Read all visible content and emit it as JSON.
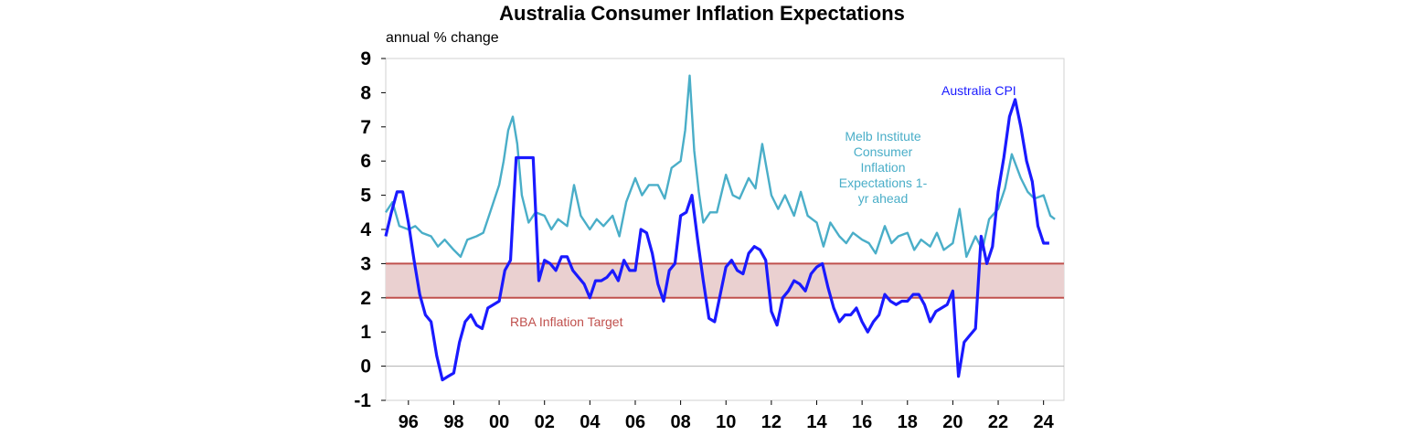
{
  "chart_data": {
    "type": "line",
    "title": "Australia Consumer Inflation Expectations",
    "ylabel": "annual % change",
    "xlabel": "",
    "ylim": [
      -1,
      9
    ],
    "yticks": [
      "-1",
      "0",
      "1",
      "2",
      "3",
      "4",
      "5",
      "6",
      "7",
      "8",
      "9"
    ],
    "xlim": [
      1995.0,
      2024.9
    ],
    "xticks": [
      {
        "label": "96",
        "value": 1996
      },
      {
        "label": "98",
        "value": 1998
      },
      {
        "label": "00",
        "value": 2000
      },
      {
        "label": "02",
        "value": 2002
      },
      {
        "label": "04",
        "value": 2004
      },
      {
        "label": "06",
        "value": 2006
      },
      {
        "label": "08",
        "value": 2008
      },
      {
        "label": "10",
        "value": 2010
      },
      {
        "label": "12",
        "value": 2012
      },
      {
        "label": "14",
        "value": 2014
      },
      {
        "label": "16",
        "value": 2016
      },
      {
        "label": "18",
        "value": 2018
      },
      {
        "label": "20",
        "value": 2020
      },
      {
        "label": "22",
        "value": 2022
      },
      {
        "label": "24",
        "value": 2024
      }
    ],
    "target_band": {
      "label": "RBA Inflation Target",
      "low": 2,
      "high": 3,
      "color": "#c0504d",
      "fill": "#ead0d0"
    },
    "series": [
      {
        "name": "Melb Institute Consumer Inflation Expectations 1-yr ahead",
        "label_lines": [
          "Melb Institute",
          "Consumer",
          "Inflation",
          "Expectations 1-",
          "yr ahead"
        ],
        "color": "#4aaec8",
        "x": [
          1995.0,
          1995.3,
          1995.6,
          1996.0,
          1996.3,
          1996.6,
          1997.0,
          1997.3,
          1997.6,
          1998.0,
          1998.3,
          1998.6,
          1999.0,
          1999.3,
          1999.6,
          2000.0,
          2000.2,
          2000.4,
          2000.6,
          2000.8,
          2001.0,
          2001.3,
          2001.6,
          2002.0,
          2002.3,
          2002.6,
          2003.0,
          2003.3,
          2003.6,
          2004.0,
          2004.3,
          2004.6,
          2005.0,
          2005.3,
          2005.6,
          2006.0,
          2006.3,
          2006.6,
          2007.0,
          2007.3,
          2007.6,
          2008.0,
          2008.2,
          2008.4,
          2008.6,
          2008.8,
          2009.0,
          2009.3,
          2009.6,
          2010.0,
          2010.3,
          2010.6,
          2011.0,
          2011.3,
          2011.6,
          2012.0,
          2012.3,
          2012.6,
          2013.0,
          2013.3,
          2013.6,
          2014.0,
          2014.3,
          2014.6,
          2015.0,
          2015.3,
          2015.6,
          2016.0,
          2016.3,
          2016.6,
          2017.0,
          2017.3,
          2017.6,
          2018.0,
          2018.3,
          2018.6,
          2019.0,
          2019.3,
          2019.6,
          2020.0,
          2020.3,
          2020.6,
          2021.0,
          2021.3,
          2021.6,
          2022.0,
          2022.3,
          2022.6,
          2023.0,
          2023.3,
          2023.6,
          2024.0,
          2024.3,
          2024.5
        ],
        "values": [
          4.5,
          4.8,
          4.1,
          4.0,
          4.1,
          3.9,
          3.8,
          3.5,
          3.7,
          3.4,
          3.2,
          3.7,
          3.8,
          3.9,
          4.5,
          5.3,
          6.0,
          6.9,
          7.3,
          6.5,
          5.0,
          4.2,
          4.5,
          4.4,
          4.0,
          4.3,
          4.1,
          5.3,
          4.4,
          4.0,
          4.3,
          4.1,
          4.4,
          3.8,
          4.8,
          5.5,
          5.0,
          5.3,
          5.3,
          4.9,
          5.8,
          6.0,
          6.9,
          8.5,
          6.3,
          5.1,
          4.2,
          4.5,
          4.5,
          5.6,
          5.0,
          4.9,
          5.5,
          5.2,
          6.5,
          5.0,
          4.6,
          5.0,
          4.4,
          5.1,
          4.4,
          4.2,
          3.5,
          4.2,
          3.8,
          3.6,
          3.9,
          3.7,
          3.6,
          3.3,
          4.1,
          3.6,
          3.8,
          3.9,
          3.4,
          3.7,
          3.5,
          3.9,
          3.4,
          3.6,
          4.6,
          3.2,
          3.8,
          3.4,
          4.3,
          4.6,
          5.2,
          6.2,
          5.5,
          5.1,
          4.9,
          5.0,
          4.4,
          4.3
        ]
      },
      {
        "name": "Australia CPI",
        "label_lines": [
          "Australia CPI"
        ],
        "color": "#1a1aff",
        "x": [
          1995.0,
          1995.25,
          1995.5,
          1995.75,
          1996.0,
          1996.25,
          1996.5,
          1996.75,
          1997.0,
          1997.25,
          1997.5,
          1997.75,
          1998.0,
          1998.25,
          1998.5,
          1998.75,
          1999.0,
          1999.25,
          1999.5,
          1999.75,
          2000.0,
          2000.25,
          2000.5,
          2000.75,
          2001.0,
          2001.25,
          2001.5,
          2001.75,
          2002.0,
          2002.25,
          2002.5,
          2002.75,
          2003.0,
          2003.25,
          2003.5,
          2003.75,
          2004.0,
          2004.25,
          2004.5,
          2004.75,
          2005.0,
          2005.25,
          2005.5,
          2005.75,
          2006.0,
          2006.25,
          2006.5,
          2006.75,
          2007.0,
          2007.25,
          2007.5,
          2007.75,
          2008.0,
          2008.25,
          2008.5,
          2008.75,
          2009.0,
          2009.25,
          2009.5,
          2009.75,
          2010.0,
          2010.25,
          2010.5,
          2010.75,
          2011.0,
          2011.25,
          2011.5,
          2011.75,
          2012.0,
          2012.25,
          2012.5,
          2012.75,
          2013.0,
          2013.25,
          2013.5,
          2013.75,
          2014.0,
          2014.25,
          2014.5,
          2014.75,
          2015.0,
          2015.25,
          2015.5,
          2015.75,
          2016.0,
          2016.25,
          2016.5,
          2016.75,
          2017.0,
          2017.25,
          2017.5,
          2017.75,
          2018.0,
          2018.25,
          2018.5,
          2018.75,
          2019.0,
          2019.25,
          2019.5,
          2019.75,
          2020.0,
          2020.25,
          2020.5,
          2020.75,
          2021.0,
          2021.25,
          2021.5,
          2021.75,
          2022.0,
          2022.25,
          2022.5,
          2022.75,
          2023.0,
          2023.25,
          2023.5,
          2023.75,
          2024.0,
          2024.25
        ],
        "values": [
          3.8,
          4.5,
          5.1,
          5.1,
          4.2,
          3.1,
          2.1,
          1.5,
          1.3,
          0.3,
          -0.4,
          -0.3,
          -0.2,
          0.7,
          1.3,
          1.5,
          1.2,
          1.1,
          1.7,
          1.8,
          1.9,
          2.8,
          3.1,
          6.1,
          6.1,
          6.1,
          6.1,
          2.5,
          3.1,
          3.0,
          2.8,
          3.2,
          3.2,
          2.8,
          2.6,
          2.4,
          2.0,
          2.5,
          2.5,
          2.6,
          2.8,
          2.5,
          3.1,
          2.8,
          2.8,
          4.0,
          3.9,
          3.3,
          2.4,
          1.9,
          2.8,
          3.0,
          4.4,
          4.5,
          5.0,
          3.7,
          2.5,
          1.4,
          1.3,
          2.1,
          2.9,
          3.1,
          2.8,
          2.7,
          3.3,
          3.5,
          3.4,
          3.1,
          1.6,
          1.2,
          2.0,
          2.2,
          2.5,
          2.4,
          2.2,
          2.7,
          2.9,
          3.0,
          2.3,
          1.7,
          1.3,
          1.5,
          1.5,
          1.7,
          1.3,
          1.0,
          1.3,
          1.5,
          2.1,
          1.9,
          1.8,
          1.9,
          1.9,
          2.1,
          2.1,
          1.8,
          1.3,
          1.6,
          1.7,
          1.8,
          2.2,
          -0.3,
          0.7,
          0.9,
          1.1,
          3.8,
          3.0,
          3.5,
          5.1,
          6.1,
          7.3,
          7.8,
          7.0,
          6.0,
          5.4,
          4.1,
          3.6,
          3.6
        ]
      }
    ]
  }
}
